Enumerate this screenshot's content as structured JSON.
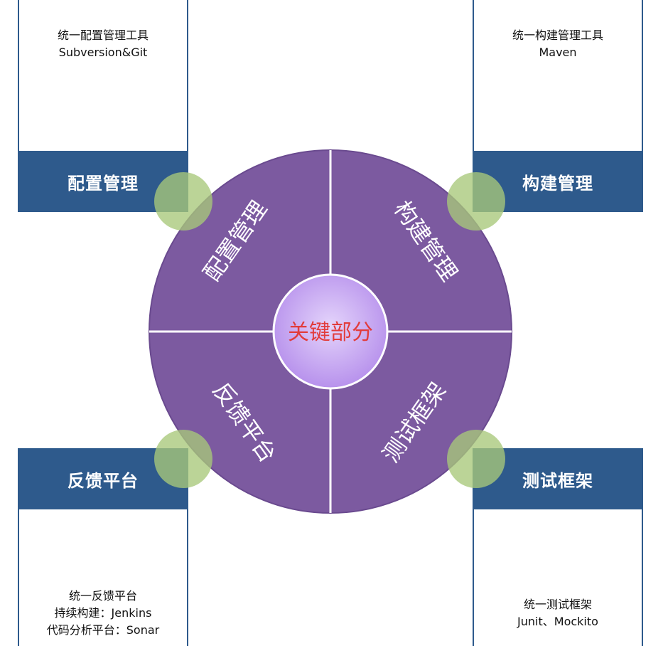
{
  "colors": {
    "header_bg": "#2e5a8c",
    "circle_fill": "#7c5aa0",
    "center_fill": "#c7a6f3",
    "accent_green": "#a8c87a",
    "center_text": "#e23c3c"
  },
  "center": {
    "label": "关键部分"
  },
  "quadrants": [
    {
      "label": "配置管理"
    },
    {
      "label": "构建管理"
    },
    {
      "label": "反馈平台"
    },
    {
      "label": "测试框架"
    }
  ],
  "cards": {
    "top_left": {
      "header": "配置管理",
      "lines": [
        "统一配置管理工具",
        "Subversion&Git"
      ]
    },
    "top_right": {
      "header": "构建管理",
      "lines": [
        "统一构建管理工具",
        "Maven"
      ]
    },
    "bottom_left": {
      "header": "反馈平台",
      "lines": [
        "统一反馈平台",
        "持续构建：Jenkins",
        "代码分析平台：Sonar"
      ]
    },
    "bottom_right": {
      "header": "测试框架",
      "lines": [
        "统一测试框架",
        "Junit、Mockito"
      ]
    }
  }
}
